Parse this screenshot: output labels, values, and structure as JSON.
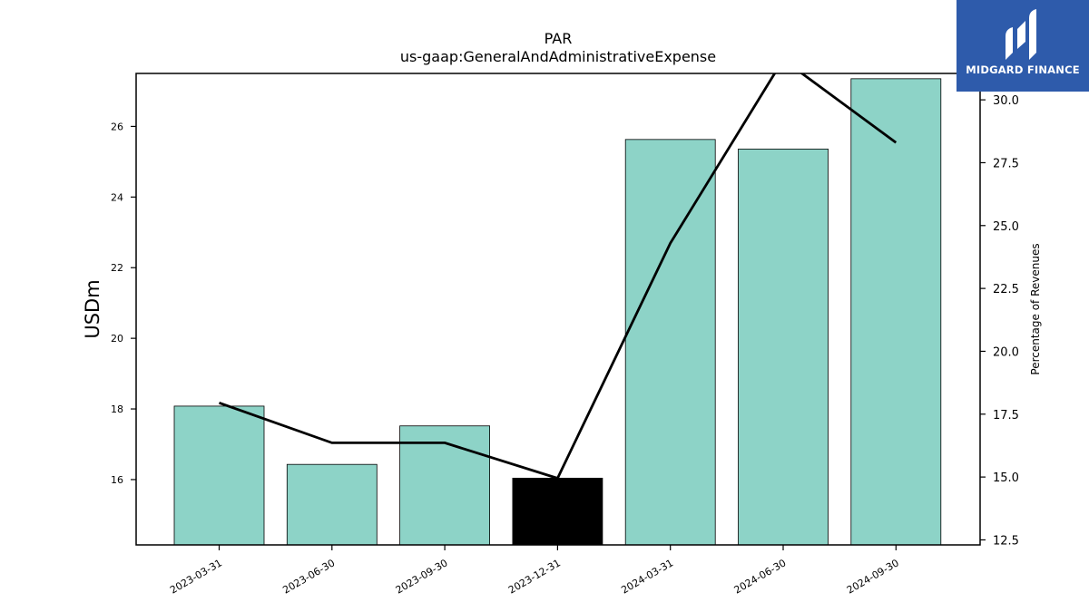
{
  "chart_data": {
    "type": "bar",
    "title": "PAR",
    "subtitle": "us-gaap:GeneralAndAdministrativeExpense",
    "ylabel": "USDm",
    "y2label": "Percentage of Revenues",
    "categories": [
      "2023-03-31",
      "2023-06-30",
      "2023-09-30",
      "2023-12-31",
      "2024-03-31",
      "2024-06-30",
      "2024-09-30"
    ],
    "series": [
      {
        "values": [
          18.08,
          16.43,
          17.52,
          16.04,
          25.63,
          25.36,
          27.35
        ],
        "axis": "left",
        "colors": [
          "#8dd3c7",
          "#8dd3c7",
          "#8dd3c7",
          "#000000",
          "#8dd3c7",
          "#8dd3c7",
          "#8dd3c7"
        ]
      },
      {
        "values": [
          17.95,
          16.36,
          16.36,
          14.95,
          24.3,
          31.6,
          28.3
        ],
        "axis": "right",
        "type": "line",
        "color": "#000000"
      }
    ],
    "ylim": [
      14.15,
      27.5
    ],
    "y2lim": [
      12.3,
      31.05
    ],
    "yticks": [
      16,
      18,
      20,
      22,
      24,
      26
    ],
    "y2ticks": [
      12.5,
      15.0,
      17.5,
      20.0,
      22.5,
      25.0,
      27.5,
      30.0
    ],
    "grid": false
  },
  "logo": {
    "text": "MIDGARD FINANCE",
    "background": "#2e5bab"
  }
}
